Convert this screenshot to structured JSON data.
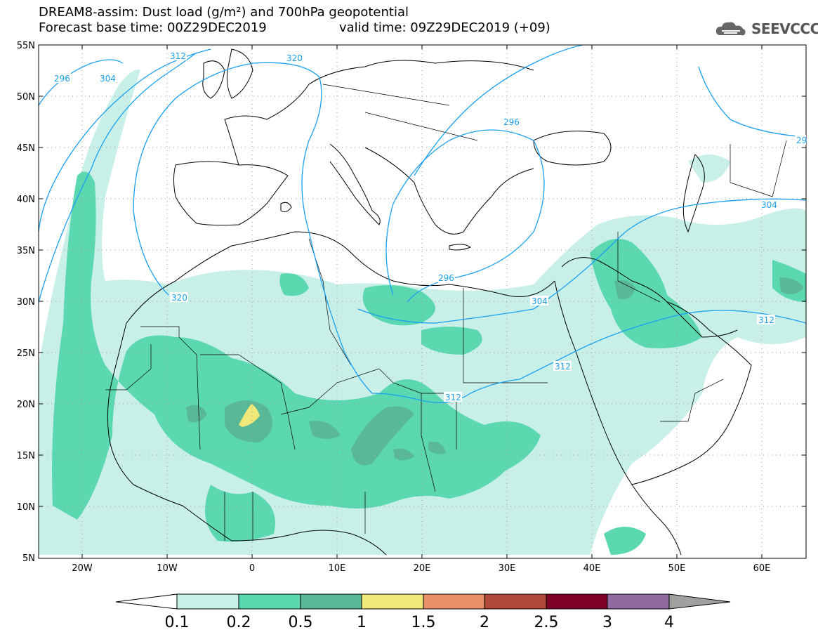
{
  "title_line1": "DREAM8-assim: Dust load (g/m²) and 700hPa geopotential",
  "title_forecast": "Forecast base time: 00Z29DEC2019",
  "title_valid": "valid time: 09Z29DEC2019 (+09)",
  "logo": {
    "text": "SEEVCCC",
    "icon": "cloud-icon"
  },
  "latitude_labels": [
    "55N",
    "50N",
    "45N",
    "40N",
    "35N",
    "30N",
    "25N",
    "20N",
    "15N",
    "10N",
    "5N"
  ],
  "longitude_labels": [
    "20W",
    "10W",
    "0",
    "10E",
    "20E",
    "30E",
    "40E",
    "50E",
    "60E"
  ],
  "contour_labels": [
    "296",
    "304",
    "312",
    "320",
    "296",
    "296",
    "304",
    "312",
    "312",
    "304",
    "312",
    "320",
    "29"
  ],
  "colors": {
    "bin_01": "#c8f0e8",
    "bin_02": "#5cd8b0",
    "bin_05": "#58b898",
    "bin_1": "#f0e878",
    "bin_15": "#e8906a",
    "bin_2": "#b04838",
    "bin_25": "#800028",
    "bin_3": "#906aa0",
    "bin_4": "#a0a0a0",
    "contour": "#1aa0f0"
  },
  "colorbar": {
    "labels": [
      "0.1",
      "0.2",
      "0.5",
      "1",
      "1.5",
      "2",
      "2.5",
      "3",
      "4"
    ],
    "colors": [
      "#c8f0e8",
      "#5cd8b0",
      "#58b898",
      "#f0e878",
      "#e8906a",
      "#b04838",
      "#800028",
      "#906aa0"
    ]
  }
}
